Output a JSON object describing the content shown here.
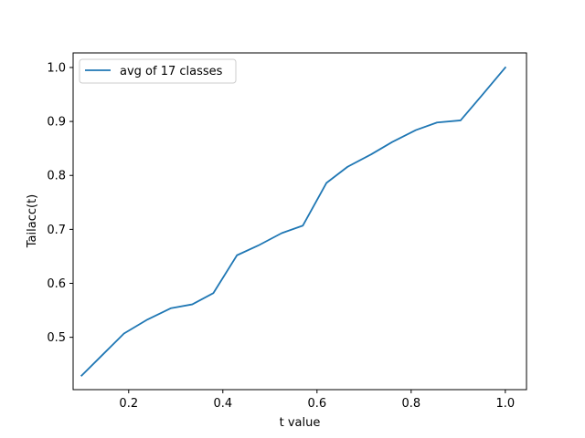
{
  "chart_data": {
    "type": "line",
    "title": "",
    "xlabel": "t value",
    "ylabel": "Tailacc(t)",
    "xlim": [
      0.082,
      1.045
    ],
    "ylim": [
      0.403,
      1.027
    ],
    "xticks": [
      0.2,
      0.4,
      0.6,
      0.8,
      1.0
    ],
    "xtick_labels": [
      "0.2",
      "0.4",
      "0.6",
      "0.8",
      "1.0"
    ],
    "yticks": [
      0.5,
      0.6,
      0.7,
      0.8,
      0.9,
      1.0
    ],
    "ytick_labels": [
      "0.5",
      "0.6",
      "0.7",
      "0.8",
      "0.9",
      "1.0"
    ],
    "grid": false,
    "legend_position": "upper-left",
    "series": [
      {
        "name": "avg of 17 classes",
        "color": "#1f77b4",
        "x": [
          0.1,
          0.145,
          0.19,
          0.24,
          0.29,
          0.335,
          0.38,
          0.43,
          0.475,
          0.525,
          0.57,
          0.62,
          0.665,
          0.715,
          0.76,
          0.81,
          0.855,
          0.905,
          0.95,
          1.0
        ],
        "y": [
          0.429,
          0.468,
          0.507,
          0.533,
          0.554,
          0.561,
          0.582,
          0.652,
          0.67,
          0.693,
          0.707,
          0.786,
          0.816,
          0.839,
          0.862,
          0.884,
          0.898,
          0.902,
          0.948,
          1.0
        ]
      }
    ]
  }
}
